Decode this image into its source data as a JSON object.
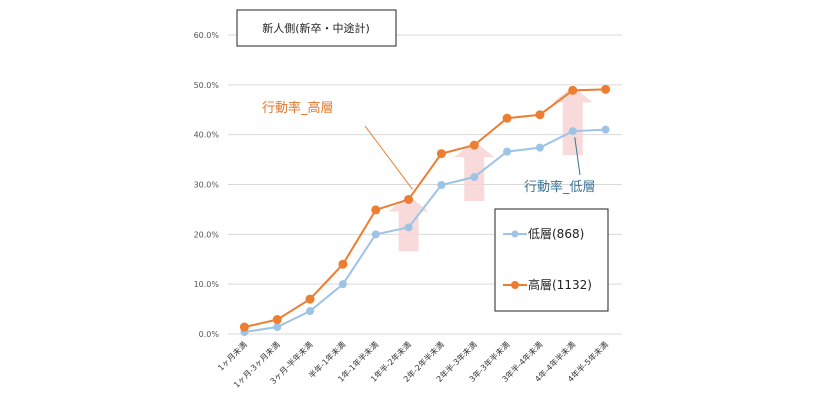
{
  "chart_data": {
    "type": "line",
    "title": "新人側(新卒・中途計)",
    "categories": [
      "1ヶ月未満",
      "1ヶ月-3ヶ月未満",
      "3ヶ月-半年未満",
      "半年-1年未満",
      "1年-1年半未満",
      "1年半-2年未満",
      "2年-2年半未満",
      "2年半-3年未満",
      "3年-3年半未満",
      "3年半-4年未満",
      "4年-4年半未満",
      "4年半-5年未満"
    ],
    "y_ticks": [
      "0.0%",
      "10.0%",
      "20.0%",
      "30.0%",
      "40.0%",
      "50.0%",
      "60.0%"
    ],
    "ylim": [
      0,
      60
    ],
    "unit": "%",
    "grid": true,
    "legend_position": "right",
    "series": [
      {
        "name": "低層(868)",
        "color": "#9dc3e6",
        "values": [
          0.4,
          1.4,
          4.6,
          10.0,
          20.0,
          21.4,
          29.9,
          31.5,
          36.6,
          37.4,
          40.7,
          41.0
        ]
      },
      {
        "name": "高層(1132)",
        "color": "#ed7d31",
        "values": [
          1.4,
          2.9,
          7.0,
          14.0,
          24.9,
          27.0,
          36.2,
          37.9,
          43.3,
          44.0,
          48.9,
          49.1
        ]
      }
    ],
    "annotations": {
      "high": "行動率_高層",
      "low": "行動率_低層"
    },
    "arrow_color": "#f8d3d3"
  }
}
